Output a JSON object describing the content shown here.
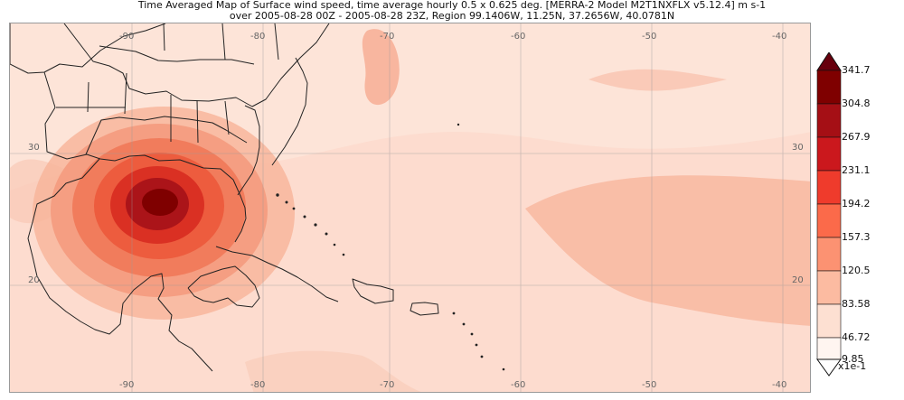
{
  "title": {
    "line1": "Time Averaged Map of Surface wind speed, time average hourly 0.5 x 0.625 deg. [MERRA-2 Model M2T1NXFLX v5.12.4] m s-1",
    "line2": "over 2005-08-28 00Z - 2005-08-28 23Z, Region 99.1406W, 11.25N, 37.2656W, 40.0781N"
  },
  "map": {
    "longitude_ticks_top": [
      "-90",
      "-80",
      "-70",
      "-60",
      "-50",
      "-40"
    ],
    "longitude_ticks_bottom": [
      "-90",
      "-80",
      "-70",
      "-60",
      "-50",
      "-40"
    ],
    "latitude_ticks_left": [
      "30",
      "20"
    ],
    "latitude_ticks_right": [
      "30",
      "20"
    ]
  },
  "legend": {
    "labels": [
      "341.7",
      "304.8",
      "267.9",
      "231.1",
      "194.2",
      "157.3",
      "120.5",
      "83.58",
      "46.72",
      "9.85"
    ],
    "unit_label": "x1e-1",
    "colors": [
      "#7f0000",
      "#a50f15",
      "#cb181d",
      "#ef3b2c",
      "#fb6a4a",
      "#fc9272",
      "#fcbba1",
      "#fde0d2",
      "#fff5f0"
    ],
    "top_arrow_color": "#67000d",
    "bottom_arrow_color": "#ffffff"
  }
}
